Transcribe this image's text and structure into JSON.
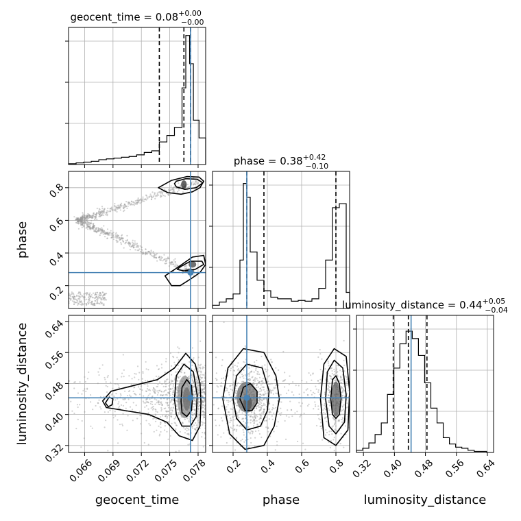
{
  "chart_data": {
    "type": "corner",
    "parameters": [
      "geocent_time",
      "phase",
      "luminosity_distance"
    ],
    "truths": {
      "geocent_time": 0.0772,
      "phase": 0.28,
      "luminosity_distance": 0.443
    },
    "colors": {
      "truth": "#4682b4",
      "hist": "#000000",
      "grid": "#b0b0b0",
      "points": "#9a9a9a"
    },
    "diagonals": [
      {
        "param": "geocent_time",
        "title": {
          "prefix": "geocent_time = 0.08",
          "sup": "+0.00",
          "sub": "−0.00"
        },
        "xlim": [
          0.0643,
          0.0788
        ],
        "quantiles": [
          0.0739,
          0.0765,
          0.0772
        ],
        "bin_edges": [
          0.0643,
          0.0651,
          0.0659,
          0.0667,
          0.0675,
          0.0683,
          0.0691,
          0.0699,
          0.0707,
          0.0715,
          0.0723,
          0.0731,
          0.0739,
          0.0747,
          0.0755,
          0.0763,
          0.0767,
          0.0771,
          0.0775,
          0.0781,
          0.0788
        ],
        "counts": [
          1,
          2,
          3,
          4,
          6,
          7,
          8,
          9,
          10,
          12,
          15,
          17,
          28,
          36,
          46,
          95,
          160,
          125,
          55,
          33
        ],
        "ymax": 170
      },
      {
        "param": "phase",
        "title": {
          "prefix": "phase = 0.38",
          "sup": "+0.42",
          "sub": "−0.10"
        },
        "xlim": [
          0.08,
          0.88
        ],
        "quantiles": [
          0.28,
          0.38,
          0.8
        ],
        "bin_edges": [
          0.08,
          0.12,
          0.16,
          0.2,
          0.24,
          0.26,
          0.28,
          0.3,
          0.34,
          0.38,
          0.42,
          0.46,
          0.5,
          0.54,
          0.58,
          0.62,
          0.66,
          0.7,
          0.74,
          0.78,
          0.82,
          0.86,
          0.88
        ],
        "counts": [
          4,
          8,
          12,
          18,
          60,
          155,
          138,
          70,
          35,
          22,
          14,
          12,
          12,
          9,
          10,
          9,
          12,
          25,
          60,
          125,
          130,
          20
        ],
        "ymax": 170
      },
      {
        "param": "luminosity_distance",
        "title": {
          "prefix": "luminosity_distance = 0.44",
          "sup": "+0.05",
          "sub": "−0.04"
        },
        "xlim": [
          0.302,
          0.656
        ],
        "quantiles": [
          0.397,
          0.436,
          0.484
        ],
        "bin_edges": [
          0.302,
          0.318,
          0.334,
          0.35,
          0.366,
          0.382,
          0.398,
          0.414,
          0.43,
          0.446,
          0.462,
          0.478,
          0.494,
          0.51,
          0.526,
          0.542,
          0.558,
          0.574,
          0.59,
          0.606,
          0.622,
          0.638
        ],
        "counts": [
          2,
          4,
          9,
          17,
          28,
          55,
          80,
          103,
          115,
          108,
          92,
          66,
          42,
          28,
          14,
          8,
          5,
          4,
          2,
          1,
          1
        ],
        "ymax": 130
      }
    ],
    "panels": [
      {
        "x": "geocent_time",
        "y": "phase",
        "xlim": [
          0.0643,
          0.0788
        ],
        "ylim": [
          0.06,
          0.9
        ],
        "contours": [
          [
            [
              0.0757,
              0.84
            ],
            [
              0.0767,
              0.855
            ],
            [
              0.0779,
              0.852
            ],
            [
              0.0785,
              0.83
            ],
            [
              0.0778,
              0.8
            ],
            [
              0.0766,
              0.79
            ],
            [
              0.0757,
              0.805
            ],
            [
              0.0755,
              0.825
            ]
          ],
          [
            [
              0.0738,
              0.8
            ],
            [
              0.0752,
              0.845
            ],
            [
              0.0768,
              0.868
            ],
            [
              0.0781,
              0.865
            ],
            [
              0.0786,
              0.84
            ],
            [
              0.0782,
              0.8
            ],
            [
              0.0774,
              0.775
            ],
            [
              0.0762,
              0.76
            ],
            [
              0.0748,
              0.77
            ]
          ],
          [
            [
              0.0761,
              0.315
            ],
            [
              0.0772,
              0.35
            ],
            [
              0.0784,
              0.35
            ],
            [
              0.0786,
              0.33
            ],
            [
              0.0777,
              0.3
            ],
            [
              0.0765,
              0.29
            ],
            [
              0.0758,
              0.3
            ]
          ],
          [
            [
              0.0752,
              0.2
            ],
            [
              0.0745,
              0.26
            ],
            [
              0.0758,
              0.31
            ],
            [
              0.0774,
              0.375
            ],
            [
              0.0786,
              0.385
            ],
            [
              0.0788,
              0.33
            ],
            [
              0.0782,
              0.28
            ],
            [
              0.0772,
              0.24
            ],
            [
              0.0761,
              0.2
            ]
          ]
        ],
        "filled": [
          {
            "center": [
              0.0765,
              0.82
            ],
            "rx": 0.0003,
            "ry": 0.025,
            "shade": "#222"
          },
          {
            "center": [
              0.0774,
              0.33
            ],
            "rx": 0.0004,
            "ry": 0.02,
            "shade": "#333"
          },
          {
            "center": [
              0.0771,
              0.29
            ],
            "rx": 0.0005,
            "ry": 0.015,
            "shade": "#555"
          }
        ],
        "scatter_rule": "geocent_phase",
        "truth": [
          0.0772,
          0.28
        ]
      },
      {
        "x": "geocent_time",
        "y": "luminosity_distance",
        "xlim": [
          0.0643,
          0.0788
        ],
        "ylim": [
          0.302,
          0.656
        ],
        "contours": [
          [
            [
              0.0762,
              0.435
            ],
            [
              0.0763,
              0.47
            ],
            [
              0.0768,
              0.49
            ],
            [
              0.0773,
              0.475
            ],
            [
              0.0774,
              0.44
            ],
            [
              0.0773,
              0.41
            ],
            [
              0.0768,
              0.395
            ],
            [
              0.0763,
              0.405
            ]
          ],
          [
            [
              0.0755,
              0.44
            ],
            [
              0.0757,
              0.5
            ],
            [
              0.0765,
              0.53
            ],
            [
              0.0775,
              0.51
            ],
            [
              0.0779,
              0.45
            ],
            [
              0.0778,
              0.395
            ],
            [
              0.0772,
              0.37
            ],
            [
              0.0763,
              0.37
            ],
            [
              0.0757,
              0.4
            ]
          ],
          [
            [
              0.0679,
              0.435
            ],
            [
              0.0688,
              0.46
            ],
            [
              0.0712,
              0.475
            ],
            [
              0.0737,
              0.49
            ],
            [
              0.0755,
              0.52
            ],
            [
              0.0767,
              0.558
            ],
            [
              0.0777,
              0.53
            ],
            [
              0.0782,
              0.48
            ],
            [
              0.0783,
              0.43
            ],
            [
              0.0782,
              0.37
            ],
            [
              0.0774,
              0.333
            ],
            [
              0.076,
              0.345
            ],
            [
              0.0747,
              0.38
            ],
            [
              0.0728,
              0.4
            ],
            [
              0.0703,
              0.41
            ],
            [
              0.0683,
              0.418
            ]
          ],
          [
            [
              0.0682,
              0.43
            ],
            [
              0.0686,
              0.445
            ],
            [
              0.069,
              0.44
            ],
            [
              0.0689,
              0.425
            ],
            [
              0.0685,
              0.42
            ]
          ]
        ],
        "filled": [
          {
            "center": [
              0.0768,
              0.44
            ],
            "rx": 0.0004,
            "ry": 0.03,
            "shade": "#222"
          },
          {
            "center": [
              0.0766,
              0.445
            ],
            "rx": 0.0008,
            "ry": 0.055,
            "shade": "#888"
          }
        ],
        "scatter_rule": "blob_geocent",
        "truth": [
          0.0772,
          0.443
        ]
      },
      {
        "x": "phase",
        "y": "luminosity_distance",
        "xlim": [
          0.08,
          0.88
        ],
        "ylim": [
          0.302,
          0.656
        ],
        "contours": [
          [
            [
              0.24,
              0.44
            ],
            [
              0.26,
              0.47
            ],
            [
              0.3,
              0.48
            ],
            [
              0.34,
              0.46
            ],
            [
              0.34,
              0.43
            ],
            [
              0.31,
              0.41
            ],
            [
              0.27,
              0.41
            ]
          ],
          [
            [
              0.2,
              0.44
            ],
            [
              0.22,
              0.5
            ],
            [
              0.28,
              0.53
            ],
            [
              0.37,
              0.52
            ],
            [
              0.41,
              0.46
            ],
            [
              0.4,
              0.41
            ],
            [
              0.36,
              0.37
            ],
            [
              0.28,
              0.36
            ],
            [
              0.22,
              0.39
            ]
          ],
          [
            [
              0.14,
              0.44
            ],
            [
              0.17,
              0.52
            ],
            [
              0.26,
              0.57
            ],
            [
              0.38,
              0.56
            ],
            [
              0.45,
              0.5
            ],
            [
              0.47,
              0.44
            ],
            [
              0.44,
              0.37
            ],
            [
              0.38,
              0.32
            ],
            [
              0.27,
              0.31
            ],
            [
              0.18,
              0.35
            ]
          ],
          [
            [
              0.77,
              0.44
            ],
            [
              0.78,
              0.49
            ],
            [
              0.8,
              0.5
            ],
            [
              0.82,
              0.48
            ],
            [
              0.83,
              0.44
            ],
            [
              0.82,
              0.4
            ],
            [
              0.8,
              0.39
            ],
            [
              0.78,
              0.4
            ]
          ],
          [
            [
              0.74,
              0.44
            ],
            [
              0.75,
              0.51
            ],
            [
              0.79,
              0.54
            ],
            [
              0.84,
              0.52
            ],
            [
              0.86,
              0.45
            ],
            [
              0.85,
              0.38
            ],
            [
              0.8,
              0.35
            ],
            [
              0.76,
              0.37
            ]
          ],
          [
            [
              0.71,
              0.44
            ],
            [
              0.73,
              0.53
            ],
            [
              0.79,
              0.57
            ],
            [
              0.86,
              0.55
            ],
            [
              0.88,
              0.46
            ],
            [
              0.87,
              0.36
            ],
            [
              0.8,
              0.32
            ],
            [
              0.73,
              0.34
            ]
          ]
        ],
        "filled": [
          {
            "center": [
              0.285,
              0.43
            ],
            "rx": 0.025,
            "ry": 0.02,
            "shade": "#111"
          },
          {
            "center": [
              0.28,
              0.445
            ],
            "rx": 0.06,
            "ry": 0.04,
            "shade": "#666"
          },
          {
            "center": [
              0.8,
              0.44
            ],
            "rx": 0.025,
            "ry": 0.045,
            "shade": "#555"
          }
        ],
        "scatter_rule": "blob_phase",
        "truth": [
          0.28,
          0.443
        ]
      }
    ],
    "axes": {
      "geocent_time": {
        "label": "geocent_time",
        "ticks": [
          0.066,
          0.069,
          0.072,
          0.075,
          0.078
        ],
        "tick_labels": [
          "0.066",
          "0.069",
          "0.072",
          "0.075",
          "0.078"
        ]
      },
      "phase": {
        "label": "phase",
        "ticks": [
          0.2,
          0.4,
          0.6,
          0.8
        ],
        "tick_labels": [
          "0.2",
          "0.4",
          "0.6",
          "0.8"
        ]
      },
      "luminosity_distance": {
        "label": "luminosity_distance",
        "ticks": [
          0.32,
          0.4,
          0.48,
          0.56,
          0.64
        ],
        "tick_labels": [
          "0.32",
          "0.40",
          "0.48",
          "0.56",
          "0.64"
        ]
      }
    },
    "grid": true
  }
}
